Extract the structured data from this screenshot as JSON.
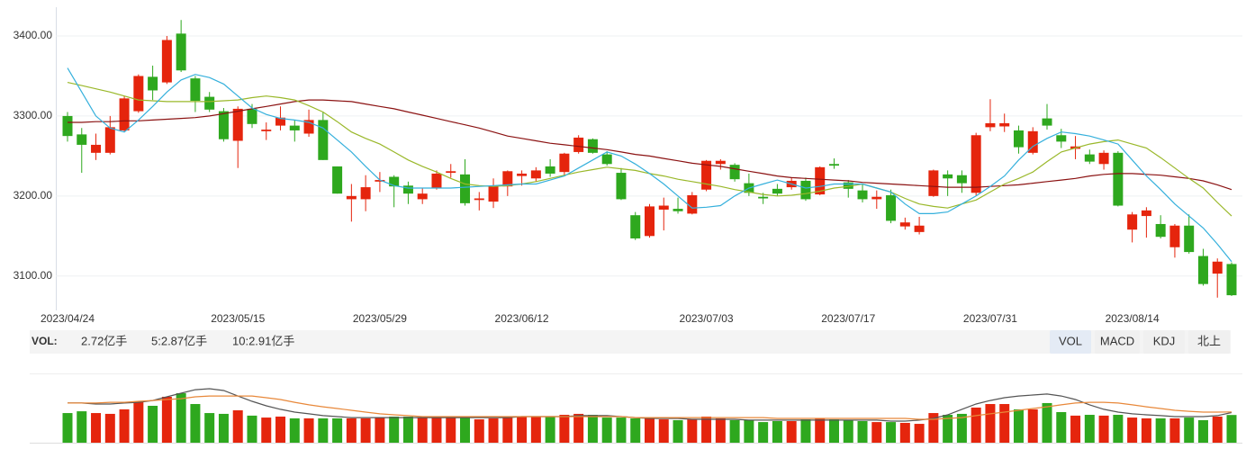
{
  "chart_data": [
    {
      "type": "candlestick",
      "categories": [
        "2023/04/24",
        null,
        null,
        null,
        null,
        null,
        null,
        null,
        null,
        null,
        null,
        null,
        "2023/05/15",
        null,
        null,
        null,
        null,
        null,
        null,
        null,
        null,
        null,
        "2023/05/29",
        null,
        null,
        null,
        null,
        null,
        null,
        null,
        null,
        null,
        "2023/06/12",
        null,
        null,
        null,
        null,
        null,
        null,
        null,
        null,
        null,
        null,
        null,
        null,
        "2023/07/03",
        null,
        null,
        null,
        null,
        null,
        null,
        null,
        null,
        null,
        "2023/07/17",
        null,
        null,
        null,
        null,
        null,
        null,
        null,
        null,
        null,
        "2023/07/31",
        null,
        null,
        null,
        null,
        null,
        null,
        null,
        null,
        null,
        "2023/08/14",
        null,
        null,
        null,
        null,
        null,
        null,
        null
      ],
      "open": [
        3300,
        3277,
        3254,
        3254,
        3282,
        3306,
        3349,
        3342,
        3403,
        3347,
        3324,
        3306,
        3269,
        3309,
        3281,
        3288,
        3288,
        3278,
        3295,
        3237,
        3196,
        3196,
        3218,
        3224,
        3213,
        3196,
        3210,
        3229,
        3227,
        3195,
        3193,
        3212,
        3225,
        3222,
        3237,
        3230,
        3255,
        3271,
        3252,
        3229,
        3176,
        3150,
        3183,
        3184,
        3178,
        3208,
        3240,
        3239,
        3216,
        3199,
        3209,
        3211,
        3219,
        3202,
        3240,
        3217,
        3207,
        3196,
        3201,
        3162,
        3155,
        3200,
        3227,
        3226,
        3204,
        3286,
        3287,
        3282,
        3254,
        3297,
        3276,
        3259,
        3252,
        3240,
        3254,
        3158,
        3175,
        3165,
        3136,
        3163,
        3125,
        3103,
        3115
      ],
      "high": [
        3305,
        3285,
        3278,
        3300,
        3325,
        3352,
        3363,
        3400,
        3420,
        3350,
        3330,
        3310,
        3312,
        3315,
        3292,
        3312,
        3295,
        3308,
        3305,
        3237,
        3215,
        3226,
        3230,
        3226,
        3218,
        3210,
        3232,
        3240,
        3246,
        3205,
        3222,
        3232,
        3232,
        3236,
        3246,
        3254,
        3276,
        3272,
        3256,
        3235,
        3180,
        3190,
        3198,
        3198,
        3205,
        3245,
        3246,
        3241,
        3228,
        3204,
        3215,
        3223,
        3223,
        3237,
        3247,
        3220,
        3215,
        3207,
        3208,
        3173,
        3174,
        3233,
        3232,
        3232,
        3279,
        3321,
        3303,
        3288,
        3286,
        3315,
        3284,
        3275,
        3258,
        3257,
        3256,
        3180,
        3186,
        3176,
        3165,
        3177,
        3134,
        3122,
        3117
      ],
      "low": [
        3268,
        3229,
        3245,
        3252,
        3280,
        3304,
        3320,
        3340,
        3355,
        3305,
        3305,
        3268,
        3235,
        3285,
        3270,
        3282,
        3268,
        3274,
        3245,
        3203,
        3168,
        3181,
        3205,
        3186,
        3190,
        3190,
        3208,
        3223,
        3188,
        3182,
        3185,
        3200,
        3213,
        3218,
        3224,
        3226,
        3253,
        3253,
        3238,
        3195,
        3145,
        3148,
        3157,
        3178,
        3177,
        3206,
        3233,
        3218,
        3200,
        3190,
        3200,
        3208,
        3194,
        3201,
        3234,
        3198,
        3192,
        3184,
        3166,
        3158,
        3152,
        3199,
        3200,
        3204,
        3200,
        3281,
        3280,
        3253,
        3252,
        3283,
        3260,
        3246,
        3240,
        3233,
        3187,
        3142,
        3148,
        3147,
        3123,
        3128,
        3088,
        3073,
        3075
      ],
      "close": [
        3275,
        3264,
        3264,
        3286,
        3322,
        3350,
        3332,
        3395,
        3357,
        3319,
        3308,
        3271,
        3309,
        3290,
        3283,
        3298,
        3282,
        3295,
        3245,
        3203,
        3200,
        3211,
        3220,
        3212,
        3203,
        3203,
        3228,
        3231,
        3191,
        3197,
        3212,
        3231,
        3228,
        3232,
        3228,
        3253,
        3273,
        3254,
        3240,
        3196,
        3147,
        3187,
        3188,
        3181,
        3201,
        3244,
        3244,
        3221,
        3204,
        3197,
        3203,
        3219,
        3196,
        3236,
        3238,
        3209,
        3196,
        3199,
        3169,
        3167,
        3163,
        3232,
        3222,
        3216,
        3276,
        3291,
        3291,
        3261,
        3281,
        3288,
        3268,
        3262,
        3243,
        3254,
        3188,
        3177,
        3182,
        3149,
        3163,
        3130,
        3090,
        3118,
        3076
      ],
      "up_color": "#e5250d",
      "down_color": "#2ea81e",
      "lines": [
        {
          "color": "#8b1212",
          "values": [
            3292,
            3292,
            3293,
            3293,
            3294,
            3294,
            3295,
            3296,
            3297,
            3298,
            3300,
            3303,
            3306,
            3309,
            3312,
            3315,
            3318,
            3320,
            3320,
            3319,
            3318,
            3315,
            3312,
            3309,
            3305,
            3301,
            3297,
            3293,
            3289,
            3285,
            3280,
            3275,
            3272,
            3269,
            3266,
            3264,
            3262,
            3260,
            3258,
            3255,
            3252,
            3250,
            3247,
            3244,
            3241,
            3239,
            3237,
            3234,
            3231,
            3228,
            3225,
            3223,
            3222,
            3221,
            3220,
            3219,
            3217,
            3216,
            3215,
            3214,
            3213,
            3212,
            3211,
            3211,
            3211,
            3212,
            3213,
            3214,
            3216,
            3218,
            3220,
            3222,
            3225,
            3227,
            3228,
            3228,
            3227,
            3226,
            3224,
            3222,
            3219,
            3214,
            3208
          ]
        },
        {
          "color": "#9ab82a",
          "values": [
            3342,
            3338,
            3334,
            3330,
            3325,
            3320,
            3319,
            3318,
            3318,
            3318,
            3318,
            3319,
            3320,
            3323,
            3325,
            3323,
            3320,
            3313,
            3305,
            3293,
            3280,
            3272,
            3265,
            3255,
            3245,
            3237,
            3230,
            3222,
            3215,
            3213,
            3212,
            3213,
            3215,
            3218,
            3222,
            3226,
            3230,
            3233,
            3236,
            3234,
            3232,
            3228,
            3225,
            3221,
            3218,
            3215,
            3212,
            3208,
            3205,
            3202,
            3200,
            3201,
            3203,
            3206,
            3210,
            3212,
            3215,
            3210,
            3205,
            3197,
            3190,
            3187,
            3185,
            3190,
            3195,
            3205,
            3215,
            3222,
            3230,
            3243,
            3255,
            3260,
            3265,
            3268,
            3270,
            3265,
            3260,
            3248,
            3235,
            3222,
            3210,
            3192,
            3175
          ]
        },
        {
          "color": "#35b0dc",
          "values": [
            3360,
            3330,
            3300,
            3285,
            3280,
            3295,
            3312,
            3330,
            3345,
            3352,
            3348,
            3340,
            3325,
            3310,
            3302,
            3297,
            3295,
            3292,
            3285,
            3270,
            3255,
            3237,
            3220,
            3213,
            3210,
            3210,
            3210,
            3210,
            3211,
            3212,
            3213,
            3214,
            3215,
            3215,
            3220,
            3225,
            3235,
            3245,
            3255,
            3250,
            3240,
            3228,
            3215,
            3200,
            3185,
            3186,
            3188,
            3200,
            3210,
            3215,
            3220,
            3215,
            3210,
            3212,
            3215,
            3215,
            3215,
            3210,
            3205,
            3190,
            3178,
            3178,
            3180,
            3190,
            3200,
            3212,
            3225,
            3245,
            3262,
            3272,
            3280,
            3278,
            3275,
            3270,
            3265,
            3245,
            3225,
            3208,
            3190,
            3175,
            3160,
            3140,
            3118
          ]
        }
      ],
      "ylim": [
        3057,
        3436
      ],
      "yticks": [
        {
          "value": 3100,
          "label": "3100.00"
        },
        {
          "value": 3200,
          "label": "3200.00"
        },
        {
          "value": 3300,
          "label": "3300.00"
        },
        {
          "value": 3400,
          "label": "3400.00"
        }
      ],
      "grid": true
    },
    {
      "type": "bar",
      "label": "VOL:",
      "legend": [
        {
          "text": "2.72亿手",
          "color": "#35b0dc"
        },
        {
          "text": "5:2.87亿手",
          "color": "#555555"
        },
        {
          "text": "10:2.91亿手",
          "color": "#e8883a"
        }
      ],
      "values": [
        2.84,
        2.95,
        2.84,
        2.79,
        3.07,
        3.57,
        3.29,
        3.85,
        4.07,
        3.4,
        2.84,
        2.79,
        3.01,
        2.68,
        2.56,
        2.62,
        2.51,
        2.51,
        2.51,
        2.51,
        2.51,
        2.51,
        2.56,
        2.62,
        2.62,
        2.56,
        2.56,
        2.56,
        2.62,
        2.45,
        2.51,
        2.56,
        2.62,
        2.62,
        2.62,
        2.73,
        2.79,
        2.73,
        2.56,
        2.56,
        2.51,
        2.51,
        2.45,
        2.4,
        2.45,
        2.62,
        2.51,
        2.4,
        2.4,
        2.28,
        2.34,
        2.34,
        2.45,
        2.51,
        2.45,
        2.4,
        2.34,
        2.28,
        2.28,
        2.23,
        2.17,
        2.84,
        2.73,
        2.79,
        3.18,
        3.4,
        3.4,
        3.07,
        3.07,
        3.46,
        2.9,
        2.68,
        2.73,
        2.68,
        2.73,
        2.56,
        2.51,
        2.51,
        2.51,
        2.56,
        2.4,
        2.62,
        2.72
      ],
      "lines": [
        {
          "color": "#555555",
          "values": [
            3.46,
            3.46,
            3.4,
            3.4,
            3.46,
            3.51,
            3.62,
            3.85,
            4.07,
            4.29,
            4.35,
            4.24,
            3.9,
            3.57,
            3.29,
            3.07,
            2.9,
            2.79,
            2.68,
            2.62,
            2.56,
            2.56,
            2.56,
            2.56,
            2.56,
            2.56,
            2.56,
            2.56,
            2.56,
            2.56,
            2.56,
            2.56,
            2.62,
            2.62,
            2.62,
            2.62,
            2.68,
            2.68,
            2.68,
            2.62,
            2.56,
            2.51,
            2.51,
            2.51,
            2.45,
            2.45,
            2.45,
            2.45,
            2.4,
            2.4,
            2.4,
            2.4,
            2.4,
            2.4,
            2.4,
            2.4,
            2.4,
            2.4,
            2.34,
            2.34,
            2.4,
            2.51,
            2.73,
            3.07,
            3.4,
            3.62,
            3.79,
            3.9,
            3.96,
            4.02,
            3.9,
            3.68,
            3.35,
            3.07,
            2.9,
            2.79,
            2.73,
            2.68,
            2.62,
            2.62,
            2.62,
            2.68,
            2.87
          ]
        },
        {
          "color": "#e8883a",
          "values": [
            3.46,
            3.46,
            3.46,
            3.51,
            3.51,
            3.57,
            3.62,
            3.68,
            3.73,
            3.85,
            3.9,
            3.9,
            3.9,
            3.9,
            3.79,
            3.68,
            3.51,
            3.35,
            3.23,
            3.12,
            3.01,
            2.9,
            2.79,
            2.73,
            2.68,
            2.62,
            2.62,
            2.62,
            2.62,
            2.62,
            2.62,
            2.62,
            2.62,
            2.62,
            2.62,
            2.62,
            2.62,
            2.62,
            2.62,
            2.62,
            2.56,
            2.56,
            2.56,
            2.56,
            2.56,
            2.56,
            2.56,
            2.56,
            2.56,
            2.56,
            2.51,
            2.51,
            2.51,
            2.51,
            2.51,
            2.51,
            2.51,
            2.51,
            2.51,
            2.51,
            2.45,
            2.45,
            2.51,
            2.56,
            2.68,
            2.79,
            2.9,
            3.01,
            3.12,
            3.23,
            3.35,
            3.46,
            3.51,
            3.51,
            3.46,
            3.35,
            3.23,
            3.12,
            3.01,
            2.95,
            2.9,
            2.9,
            2.91
          ]
        }
      ],
      "ylim": [
        1.0,
        5.3
      ]
    }
  ],
  "tabs": {
    "items": [
      "VOL",
      "MACD",
      "KDJ",
      "北上"
    ],
    "active": 0
  }
}
